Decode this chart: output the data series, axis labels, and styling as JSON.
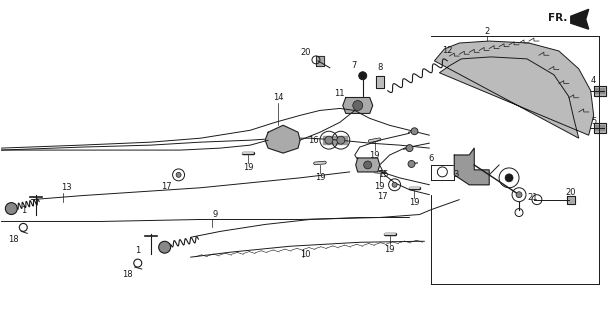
{
  "bg_color": "#ffffff",
  "fig_width": 6.09,
  "fig_height": 3.2,
  "dpi": 100,
  "dark": "#1a1a1a",
  "gray": "#888888",
  "light_gray": "#cccccc"
}
